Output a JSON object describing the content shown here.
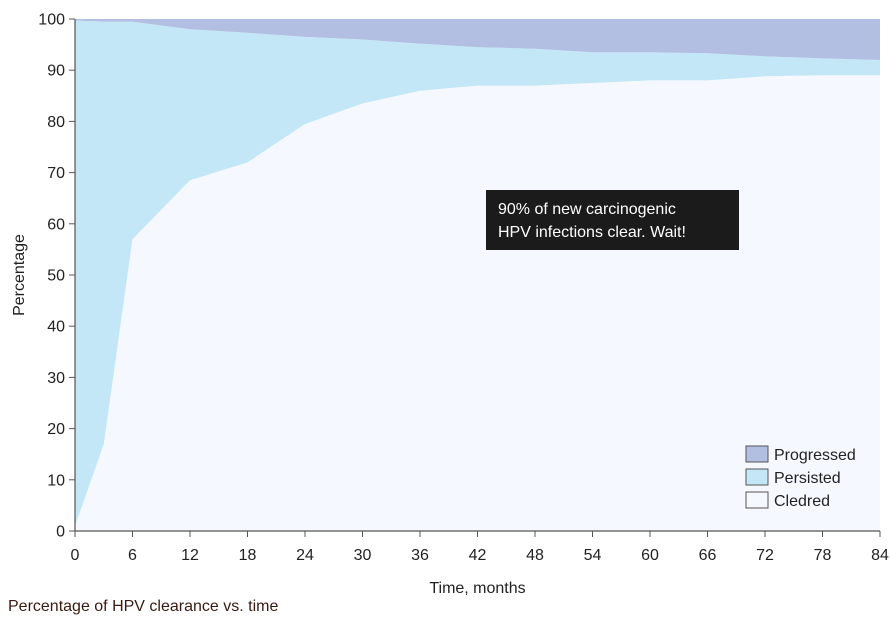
{
  "chart_data": {
    "type": "area",
    "stacked": true,
    "x": [
      0,
      3,
      6,
      12,
      18,
      24,
      30,
      36,
      42,
      48,
      54,
      60,
      66,
      72,
      78,
      84
    ],
    "xlabel": "Time, months",
    "ylabel": "Percentage",
    "xlim": [
      0,
      84
    ],
    "ylim": [
      0,
      100
    ],
    "xticks": [
      0,
      6,
      12,
      18,
      24,
      30,
      36,
      42,
      48,
      54,
      60,
      66,
      72,
      78,
      84
    ],
    "yticks": [
      0,
      10,
      20,
      30,
      40,
      50,
      60,
      70,
      80,
      90,
      100
    ],
    "grid": false,
    "legend_position": "bottom-right",
    "series": [
      {
        "name": "Cledred",
        "color": "#f6f8ff",
        "values": [
          1,
          17,
          57,
          68.5,
          72,
          79.5,
          83.5,
          86,
          87,
          87,
          87.5,
          88,
          88,
          88.8,
          89,
          89
        ]
      },
      {
        "name": "Persisted",
        "color": "#c3e7f6",
        "values": [
          98.7,
          82.5,
          42.5,
          29.5,
          25.3,
          17,
          12.5,
          9.2,
          7.5,
          7.2,
          6,
          5.5,
          5.3,
          3.9,
          3.3,
          3
        ]
      },
      {
        "name": "Progressed",
        "color": "#b3bfe2",
        "values": [
          0.3,
          0.5,
          0.5,
          2,
          2.7,
          3.5,
          4,
          4.8,
          5.5,
          5.8,
          6.5,
          6.5,
          6.7,
          7.3,
          7.7,
          8
        ]
      }
    ],
    "annotation": {
      "lines": [
        "90% of new carcinogenic",
        "HPV infections clear. Wait!"
      ],
      "background": "#1b1b1b",
      "text_color": "#ffffff"
    },
    "caption": "Percentage of HPV clearance vs. time"
  }
}
